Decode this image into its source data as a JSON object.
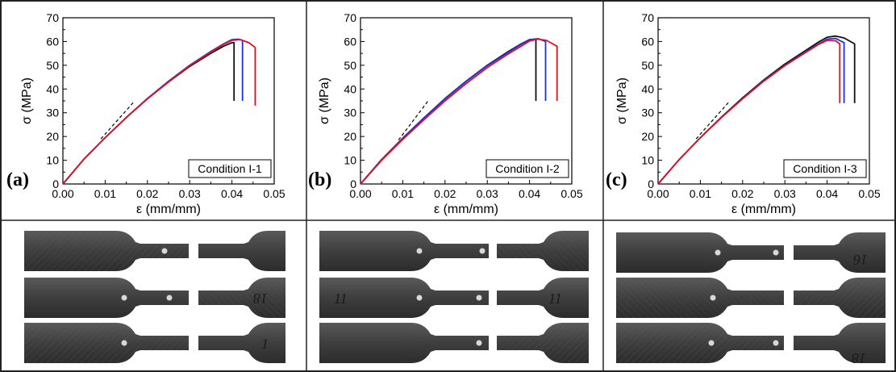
{
  "chart_data": [
    {
      "type": "line",
      "panel_label": "(a)",
      "box_label": "Condition I-1",
      "xlabel": "ε (mm/mm)",
      "ylabel": "σ (MPa)",
      "xlim": [
        0,
        0.05
      ],
      "ylim": [
        0,
        70
      ],
      "xticks": [
        "0.00",
        "0.01",
        "0.02",
        "0.03",
        "0.04",
        "0.05"
      ],
      "yticks": [
        "0",
        "10",
        "20",
        "30",
        "40",
        "50",
        "60",
        "70"
      ],
      "grid": false,
      "series": [
        {
          "color": "#111111",
          "x": [
            0,
            0.005,
            0.01,
            0.015,
            0.02,
            0.025,
            0.03,
            0.035,
            0.038,
            0.04,
            0.0405,
            0.0405
          ],
          "y": [
            0,
            10.5,
            19.5,
            28,
            36,
            43,
            49.5,
            55,
            58,
            59.5,
            59.5,
            35
          ]
        },
        {
          "color": "#2030e0",
          "x": [
            0,
            0.005,
            0.01,
            0.015,
            0.02,
            0.025,
            0.03,
            0.035,
            0.038,
            0.04,
            0.0415,
            0.0425,
            0.0425
          ],
          "y": [
            0,
            10.5,
            19.5,
            28,
            36,
            43.3,
            50,
            55.8,
            59,
            60.8,
            61,
            60.5,
            35
          ]
        },
        {
          "color": "#e01020",
          "x": [
            0,
            0.005,
            0.01,
            0.015,
            0.02,
            0.025,
            0.03,
            0.035,
            0.038,
            0.04,
            0.042,
            0.044,
            0.0455,
            0.0455
          ],
          "y": [
            0,
            10.5,
            19.5,
            28,
            35.8,
            43,
            49.8,
            55.5,
            58.8,
            60.5,
            60.8,
            59.5,
            57.5,
            33
          ]
        }
      ],
      "annotation": {
        "type": "dashed-line",
        "x": [
          0.009,
          0.017
        ],
        "y": [
          19,
          35
        ]
      }
    },
    {
      "type": "line",
      "panel_label": "(b)",
      "box_label": "Condition I-2",
      "xlabel": "ε (mm/mm)",
      "ylabel": "σ (MPa)",
      "xlim": [
        0,
        0.05
      ],
      "ylim": [
        0,
        70
      ],
      "xticks": [
        "0.00",
        "0.01",
        "0.02",
        "0.03",
        "0.04",
        "0.05"
      ],
      "yticks": [
        "0",
        "10",
        "20",
        "30",
        "40",
        "50",
        "60",
        "70"
      ],
      "grid": false,
      "series": [
        {
          "color": "#111111",
          "x": [
            0,
            0.005,
            0.01,
            0.015,
            0.02,
            0.025,
            0.03,
            0.035,
            0.038,
            0.04,
            0.0415,
            0.0415
          ],
          "y": [
            0,
            10.3,
            19.3,
            27.8,
            36,
            43.3,
            50,
            55.8,
            59,
            60.8,
            61,
            35
          ]
        },
        {
          "color": "#2030e0",
          "x": [
            0,
            0.005,
            0.01,
            0.015,
            0.02,
            0.025,
            0.03,
            0.035,
            0.038,
            0.04,
            0.042,
            0.0438,
            0.0438
          ],
          "y": [
            0,
            10.3,
            19.3,
            27.8,
            35.8,
            43.2,
            49.8,
            55.5,
            58.8,
            60.8,
            61.2,
            60,
            35
          ]
        },
        {
          "color": "#e01020",
          "x": [
            0,
            0.005,
            0.01,
            0.015,
            0.02,
            0.025,
            0.03,
            0.035,
            0.038,
            0.04,
            0.042,
            0.044,
            0.0465,
            0.0465
          ],
          "y": [
            0,
            10,
            18.8,
            27,
            35,
            42.3,
            49,
            54.8,
            58,
            60.2,
            61,
            60.5,
            58,
            35
          ]
        }
      ],
      "annotation": {
        "type": "dashed-line",
        "x": [
          0.009,
          0.016
        ],
        "y": [
          18.5,
          35
        ]
      }
    },
    {
      "type": "line",
      "panel_label": "(c)",
      "box_label": "Condition I-3",
      "xlabel": "ε (mm/mm)",
      "ylabel": "σ (MPa)",
      "xlim": [
        0,
        0.05
      ],
      "ylim": [
        0,
        70
      ],
      "xticks": [
        "0.00",
        "0.01",
        "0.02",
        "0.03",
        "0.04",
        "0.05"
      ],
      "yticks": [
        "0",
        "10",
        "20",
        "30",
        "40",
        "50",
        "60",
        "70"
      ],
      "grid": false,
      "series": [
        {
          "color": "#111111",
          "x": [
            0,
            0.005,
            0.01,
            0.015,
            0.02,
            0.025,
            0.03,
            0.035,
            0.038,
            0.04,
            0.042,
            0.044,
            0.0465,
            0.0465
          ],
          "y": [
            0,
            10.3,
            19.5,
            28.2,
            36.3,
            43.8,
            50.5,
            56.3,
            59.8,
            61.8,
            62.3,
            61.5,
            59,
            34
          ]
        },
        {
          "color": "#2030e0",
          "x": [
            0,
            0.005,
            0.01,
            0.015,
            0.02,
            0.025,
            0.03,
            0.035,
            0.038,
            0.04,
            0.042,
            0.044,
            0.044
          ],
          "y": [
            0,
            10.3,
            19.5,
            28,
            36,
            43.5,
            50,
            55.8,
            59,
            61,
            61.3,
            59.5,
            34
          ]
        },
        {
          "color": "#e01020",
          "x": [
            0,
            0.005,
            0.01,
            0.015,
            0.02,
            0.025,
            0.03,
            0.035,
            0.038,
            0.04,
            0.042,
            0.043,
            0.043
          ],
          "y": [
            0,
            10.3,
            19.5,
            28,
            35.9,
            43.3,
            49.8,
            55.5,
            58.8,
            60.5,
            60.3,
            59,
            34
          ]
        }
      ],
      "annotation": {
        "type": "dashed-line",
        "x": [
          0.009,
          0.017
        ],
        "y": [
          19,
          35
        ]
      }
    }
  ],
  "specimen_photos": [
    {
      "labels": [
        {
          "row": 1,
          "text": "18"
        },
        {
          "row": 2,
          "text": "1"
        }
      ]
    },
    {
      "labels": [
        {
          "row": 1,
          "text": "11"
        },
        {
          "row": 1,
          "text": "11"
        }
      ]
    },
    {
      "labels": [
        {
          "row": 0,
          "text": "16"
        },
        {
          "row": 2,
          "text": "18"
        }
      ]
    }
  ]
}
